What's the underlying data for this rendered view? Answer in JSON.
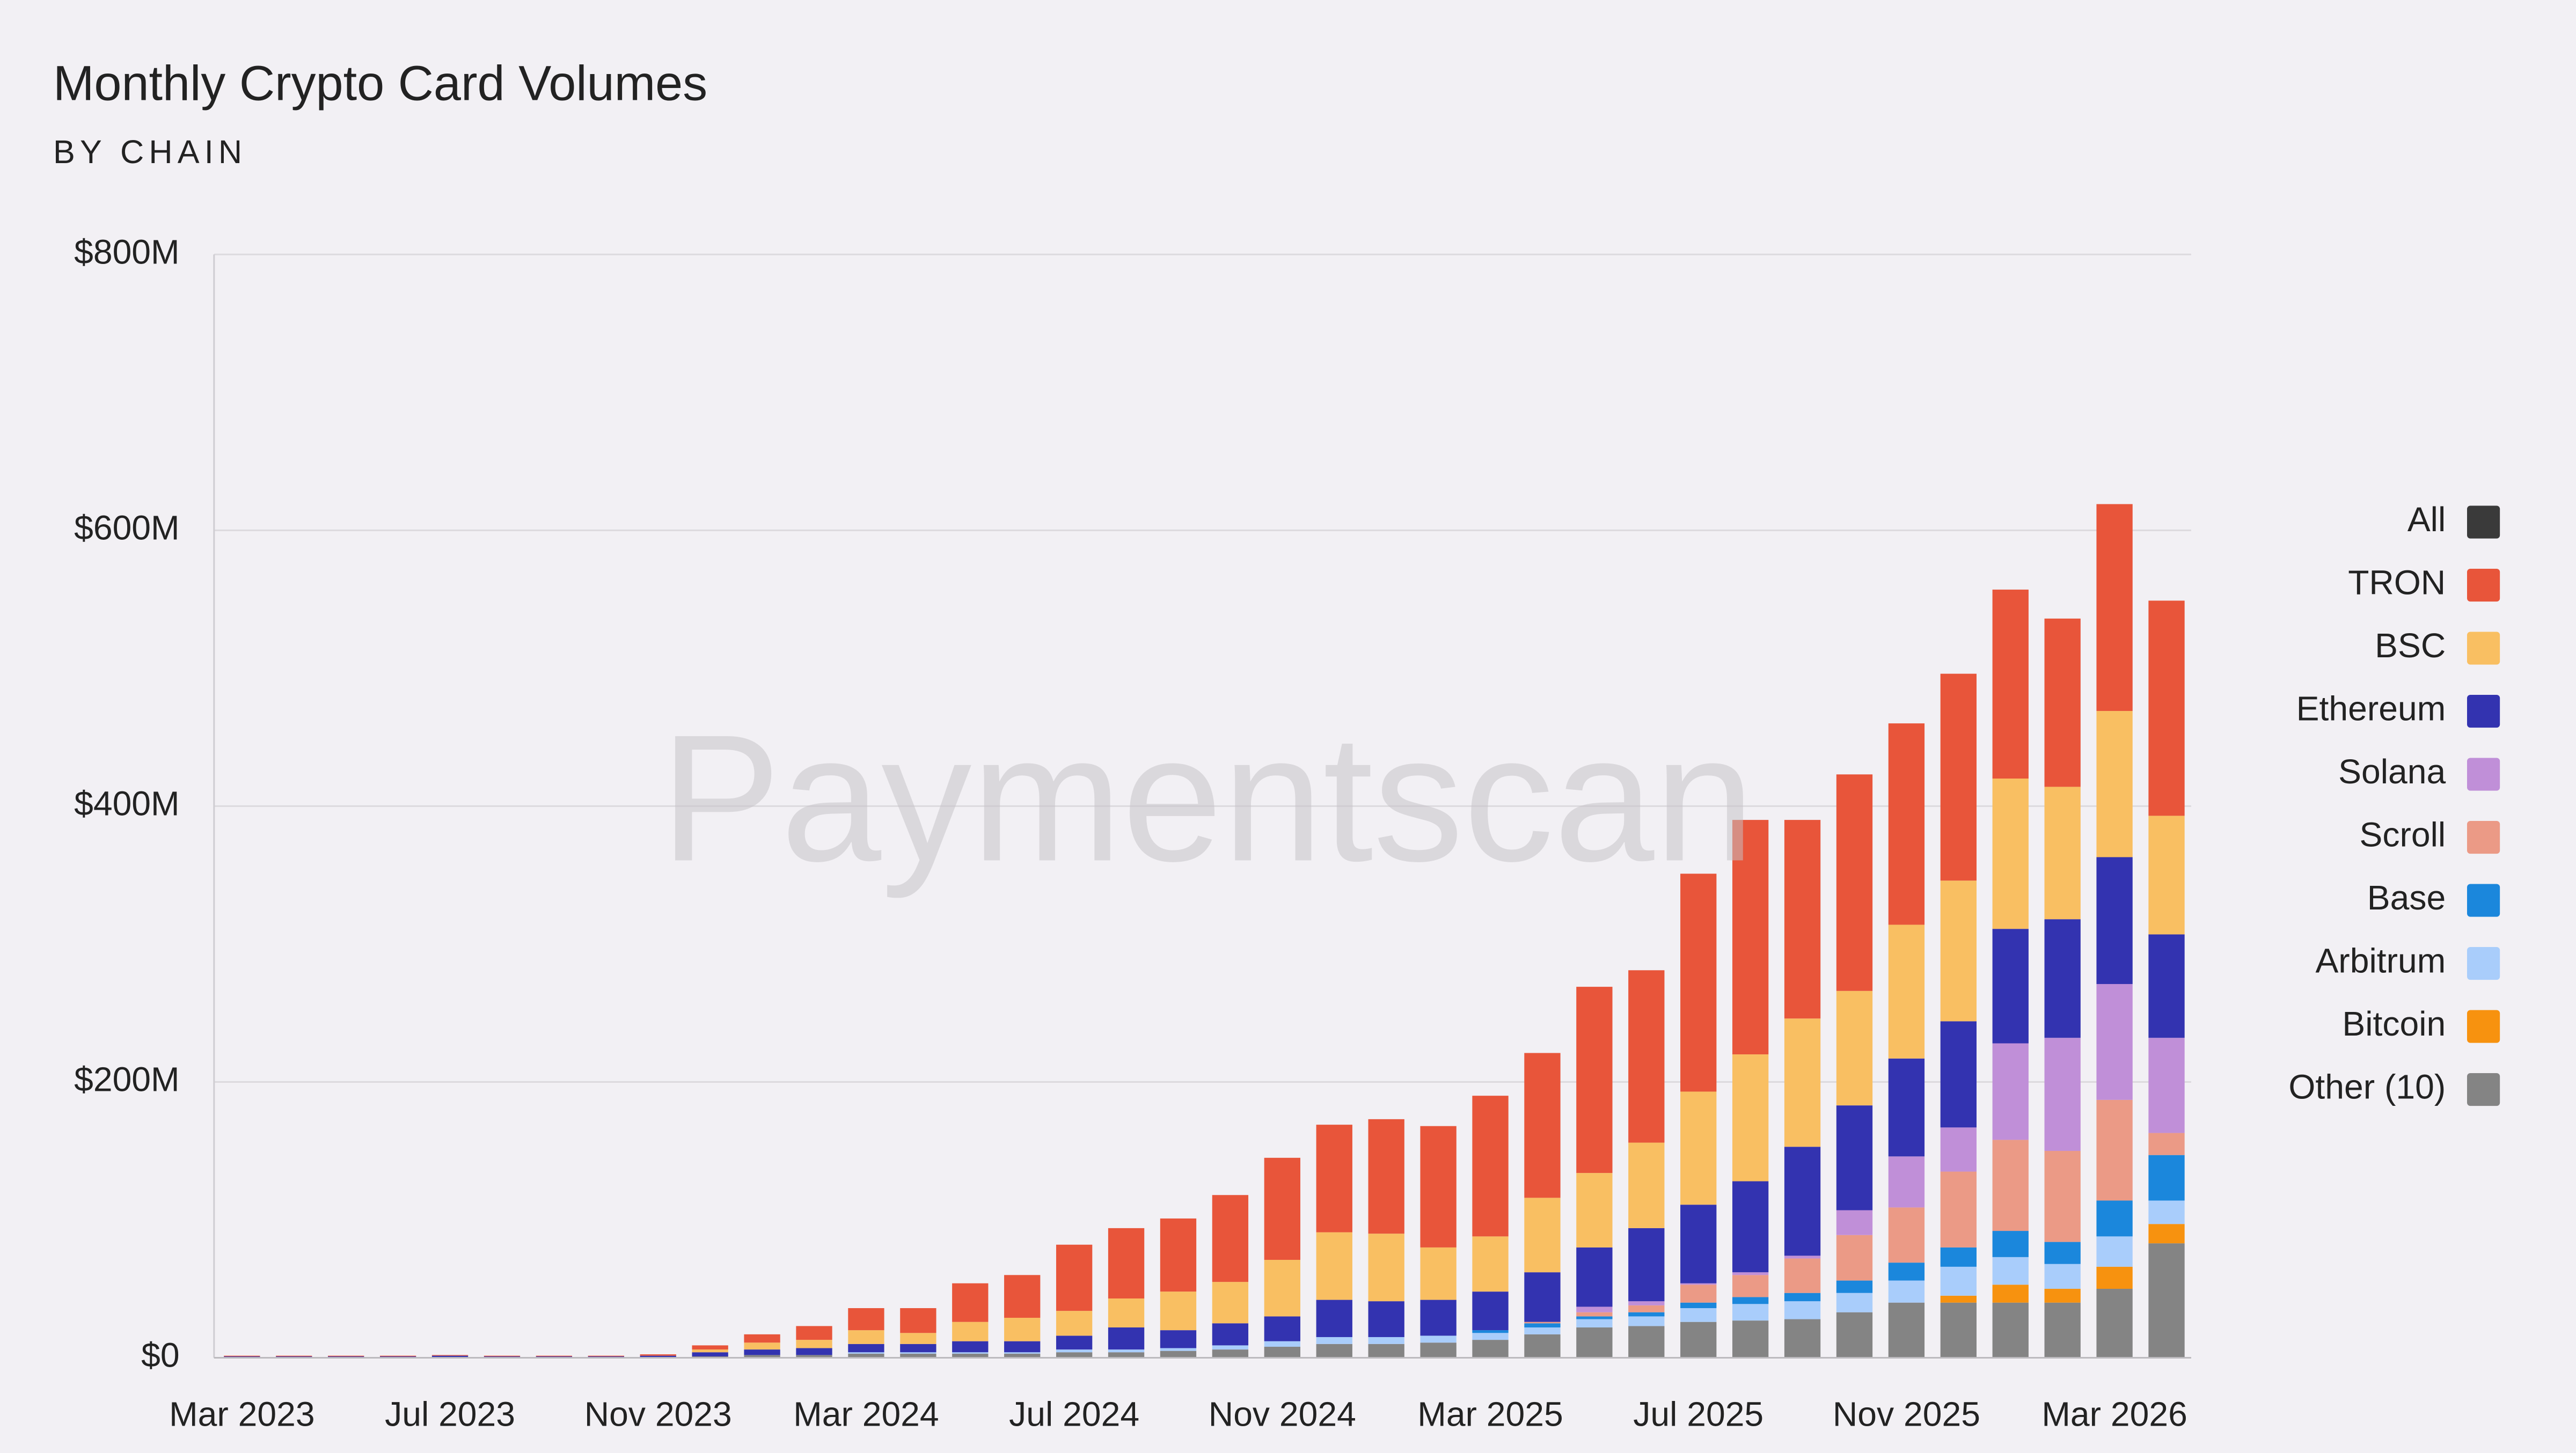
{
  "chart_data": {
    "type": "stacked_bar",
    "title": "Monthly Crypto Card Volumes",
    "subtitle": "BY CHAIN",
    "watermark": "Paymentscan",
    "categories": [
      "Mar 2023",
      null,
      null,
      null,
      "Jul 2023",
      null,
      null,
      null,
      "Nov 2023",
      null,
      null,
      null,
      "Mar 2024",
      null,
      null,
      null,
      "Jul 2024",
      null,
      null,
      null,
      "Nov 2024",
      null,
      null,
      null,
      "Mar 2025",
      null,
      null,
      null,
      "Jul 2025",
      null,
      null,
      null,
      "Nov 2025",
      null,
      null,
      null,
      "Mar 2026",
      null
    ],
    "ylim": [
      0,
      800
    ],
    "yticks": [
      {
        "value": 0,
        "label": "$0"
      },
      {
        "value": 200,
        "label": "$200M"
      },
      {
        "value": 400,
        "label": "$400M"
      },
      {
        "value": 600,
        "label": "$600M"
      },
      {
        "value": 800,
        "label": "$800M"
      }
    ],
    "grid": true,
    "legend_position": "right",
    "legend_all": {
      "name": "All",
      "color": "#3a3a3a"
    },
    "series": [
      {
        "name": "TRON",
        "color": "#e8553a",
        "values": [
          0.5,
          0.5,
          0.5,
          0.5,
          0.5,
          0.5,
          0.5,
          0.5,
          1,
          3,
          6,
          10,
          16,
          18,
          28,
          31,
          48,
          51,
          53,
          63,
          74,
          78,
          83,
          88,
          102,
          105,
          135,
          125,
          158,
          170,
          144,
          157,
          146,
          150,
          137,
          122,
          150,
          156
        ]
      },
      {
        "name": "BSC",
        "color": "#f9bf62",
        "values": [
          0,
          0,
          0,
          0,
          0,
          0,
          0,
          0,
          0,
          2,
          5,
          6,
          10,
          8,
          14,
          17,
          18,
          21,
          28,
          30,
          41,
          49,
          49,
          38,
          40,
          54,
          54,
          62,
          82,
          92,
          93,
          83,
          97,
          102,
          109,
          96,
          106,
          86
        ]
      },
      {
        "name": "Ethereum",
        "color": "#3333b0",
        "values": [
          0.5,
          0.5,
          0.5,
          0.5,
          1,
          0.5,
          0.5,
          0.5,
          1,
          3,
          4,
          5,
          6,
          6,
          8,
          8,
          10,
          16,
          13,
          16,
          18,
          27,
          26,
          26,
          28,
          36,
          43,
          53,
          57,
          66,
          79,
          76,
          71,
          77,
          83,
          86,
          92,
          75
        ]
      },
      {
        "name": "Solana",
        "color": "#c08fd8",
        "values": [
          0,
          0,
          0,
          0,
          0,
          0,
          0,
          0,
          0,
          0,
          0,
          0,
          0,
          0,
          0,
          0,
          0,
          0,
          0,
          0,
          0,
          0,
          0,
          0,
          0,
          0,
          4,
          3,
          1,
          2,
          2,
          18,
          37,
          32,
          70,
          82,
          84,
          69
        ]
      },
      {
        "name": "Scroll",
        "color": "#eb9a86",
        "values": [
          0,
          0,
          0,
          0,
          0,
          0,
          0,
          0,
          0,
          0,
          0,
          0,
          0,
          0,
          0,
          0,
          0,
          0,
          0,
          0,
          0,
          0,
          0,
          0,
          0,
          1,
          3,
          5,
          13,
          16,
          25,
          33,
          40,
          55,
          66,
          66,
          73,
          16
        ]
      },
      {
        "name": "Base",
        "color": "#1b87dc",
        "values": [
          0,
          0,
          0,
          0,
          0,
          0,
          0,
          0,
          0,
          0,
          0,
          0,
          0,
          0,
          0,
          0,
          0,
          0,
          0,
          0,
          0,
          0,
          0,
          0,
          2,
          3,
          2,
          3,
          4,
          5,
          6,
          9,
          13,
          14,
          19,
          16,
          26,
          33
        ]
      },
      {
        "name": "Arbitrum",
        "color": "#a9cdfb",
        "values": [
          0,
          0,
          0,
          0,
          0,
          0,
          0,
          0,
          0,
          0,
          0,
          0,
          1,
          1,
          1,
          1,
          2,
          2,
          2,
          3,
          4,
          5,
          5,
          5,
          5,
          5,
          6,
          7,
          10,
          12,
          13,
          14,
          16,
          21,
          20,
          18,
          22,
          17
        ]
      },
      {
        "name": "Bitcoin",
        "color": "#f7920f",
        "values": [
          0,
          0,
          0,
          0,
          0,
          0,
          0,
          0,
          0,
          0,
          0,
          0,
          0,
          0,
          0,
          0,
          0,
          0,
          0,
          0,
          0,
          0,
          0,
          0,
          0,
          0,
          0,
          0,
          0,
          0,
          0,
          0,
          0,
          5,
          13,
          10,
          16,
          14
        ]
      },
      {
        "name": "Other (10)",
        "color": "#848484",
        "values": [
          0.5,
          0.5,
          0.5,
          0.5,
          0.5,
          0.5,
          0.5,
          0.5,
          0.5,
          1,
          2,
          2,
          3,
          3,
          3,
          3,
          4,
          4,
          5,
          6,
          8,
          10,
          10,
          11,
          13,
          17,
          22,
          23,
          26,
          27,
          28,
          33,
          40,
          40,
          40,
          40,
          50,
          83
        ]
      }
    ]
  }
}
